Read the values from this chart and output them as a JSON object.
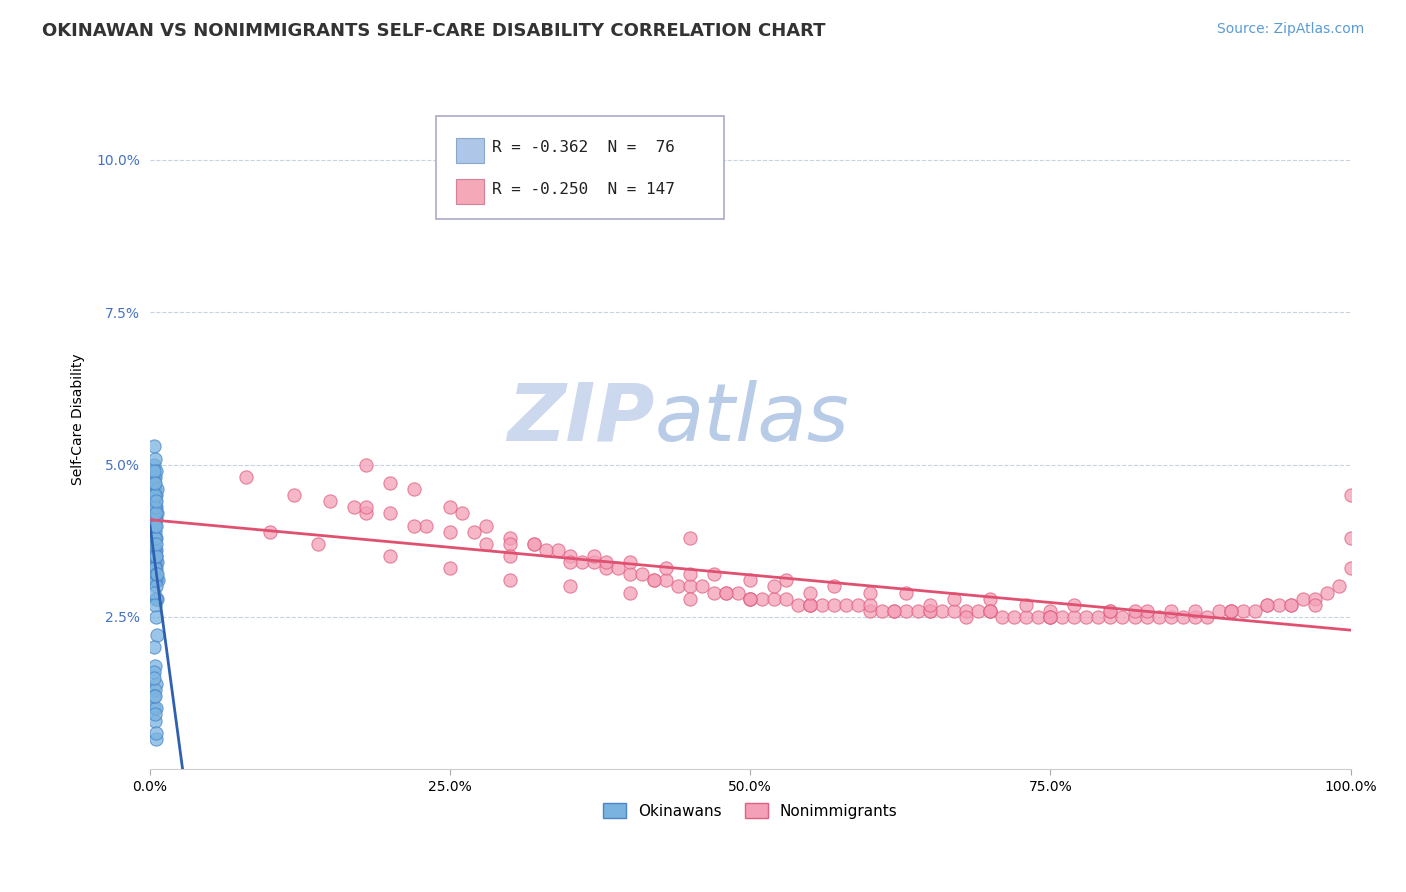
{
  "title": "OKINAWAN VS NONIMMIGRANTS SELF-CARE DISABILITY CORRELATION CHART",
  "source": "Source: ZipAtlas.com",
  "ylabel": "Self-Care Disability",
  "xlim": [
    0,
    1.0
  ],
  "ylim": [
    0,
    0.115
  ],
  "yticks": [
    0.025,
    0.05,
    0.075,
    0.1
  ],
  "ytick_labels": [
    "2.5%",
    "5.0%",
    "7.5%",
    "10.0%"
  ],
  "xticks": [
    0,
    0.25,
    0.5,
    0.75,
    1.0
  ],
  "xtick_labels": [
    "0.0%",
    "25.0%",
    "50.0%",
    "75.0%",
    "100.0%"
  ],
  "okinawan_color": "#7ab3e0",
  "okinawan_edge": "#4a86c8",
  "nonimmigrant_color": "#f4a0b8",
  "nonimmigrant_edge": "#e06080",
  "trendline_okinawan": "#3060b0",
  "trendline_nonimmigrant": "#e05070",
  "background_color": "#ffffff",
  "grid_color": "#c0cfe0",
  "watermark_zip": "ZIP",
  "watermark_atlas": "atlas",
  "watermark_color_zip": "#ccd8ee",
  "watermark_color_atlas": "#b8cce8",
  "title_fontsize": 13,
  "axis_label_fontsize": 10,
  "tick_fontsize": 10,
  "source_fontsize": 10,
  "R_okinawan": -0.362,
  "N_okinawan": 76,
  "R_nonimmigrant": -0.25,
  "N_nonimmigrant": 147,
  "ok_x": [
    0.002,
    0.003,
    0.004,
    0.005,
    0.006,
    0.007,
    0.003,
    0.004,
    0.005,
    0.003,
    0.004,
    0.005,
    0.003,
    0.004,
    0.005,
    0.006,
    0.003,
    0.004,
    0.005,
    0.006,
    0.003,
    0.004,
    0.005,
    0.006,
    0.003,
    0.004,
    0.005,
    0.003,
    0.004,
    0.005,
    0.003,
    0.004,
    0.005,
    0.003,
    0.004,
    0.005,
    0.003,
    0.004,
    0.005,
    0.003,
    0.004,
    0.005,
    0.003,
    0.004,
    0.005,
    0.006,
    0.003,
    0.004,
    0.005,
    0.006,
    0.003,
    0.004,
    0.005,
    0.003,
    0.004,
    0.005,
    0.003,
    0.004,
    0.005,
    0.003,
    0.004,
    0.005,
    0.003,
    0.004,
    0.005,
    0.003,
    0.004,
    0.005,
    0.003,
    0.004,
    0.005,
    0.003,
    0.004,
    0.005,
    0.003,
    0.004
  ],
  "ok_y": [
    0.043,
    0.041,
    0.039,
    0.036,
    0.034,
    0.031,
    0.046,
    0.044,
    0.041,
    0.048,
    0.046,
    0.043,
    0.05,
    0.048,
    0.045,
    0.042,
    0.053,
    0.051,
    0.049,
    0.046,
    0.036,
    0.034,
    0.031,
    0.028,
    0.038,
    0.036,
    0.033,
    0.04,
    0.038,
    0.035,
    0.033,
    0.031,
    0.028,
    0.043,
    0.041,
    0.038,
    0.035,
    0.033,
    0.03,
    0.037,
    0.035,
    0.032,
    0.029,
    0.027,
    0.025,
    0.022,
    0.04,
    0.038,
    0.035,
    0.032,
    0.042,
    0.04,
    0.037,
    0.045,
    0.043,
    0.04,
    0.047,
    0.045,
    0.042,
    0.049,
    0.047,
    0.044,
    0.02,
    0.017,
    0.014,
    0.01,
    0.008,
    0.005,
    0.016,
    0.013,
    0.01,
    0.012,
    0.009,
    0.006,
    0.015,
    0.012
  ],
  "ni_x": [
    0.18,
    0.2,
    0.22,
    0.25,
    0.26,
    0.28,
    0.3,
    0.32,
    0.34,
    0.35,
    0.36,
    0.37,
    0.38,
    0.39,
    0.4,
    0.41,
    0.42,
    0.43,
    0.44,
    0.45,
    0.46,
    0.47,
    0.48,
    0.49,
    0.5,
    0.51,
    0.52,
    0.53,
    0.54,
    0.55,
    0.56,
    0.57,
    0.58,
    0.59,
    0.6,
    0.61,
    0.62,
    0.63,
    0.64,
    0.65,
    0.66,
    0.67,
    0.68,
    0.69,
    0.7,
    0.71,
    0.72,
    0.73,
    0.74,
    0.75,
    0.76,
    0.77,
    0.78,
    0.79,
    0.8,
    0.81,
    0.82,
    0.83,
    0.84,
    0.85,
    0.86,
    0.87,
    0.88,
    0.89,
    0.9,
    0.91,
    0.92,
    0.93,
    0.94,
    0.95,
    0.96,
    0.97,
    0.98,
    0.99,
    1.0,
    0.15,
    0.17,
    0.2,
    0.23,
    0.27,
    0.3,
    0.33,
    0.37,
    0.4,
    0.43,
    0.47,
    0.5,
    0.53,
    0.57,
    0.6,
    0.63,
    0.67,
    0.7,
    0.73,
    0.77,
    0.8,
    0.83,
    0.87,
    0.9,
    0.93,
    0.97,
    1.0,
    0.1,
    0.14,
    0.2,
    0.25,
    0.3,
    0.35,
    0.4,
    0.45,
    0.5,
    0.55,
    0.6,
    0.65,
    0.7,
    0.75,
    0.8,
    0.85,
    0.9,
    0.95,
    1.0,
    0.08,
    0.12,
    0.18,
    0.25,
    0.32,
    0.38,
    0.45,
    0.52,
    0.18,
    0.22,
    0.28,
    0.35,
    0.42,
    0.48,
    0.55,
    0.62,
    0.68,
    0.75,
    0.82,
    0.3,
    0.5,
    0.7,
    0.45,
    0.55,
    0.65,
    0.75
  ],
  "ni_y": [
    0.05,
    0.047,
    0.046,
    0.043,
    0.042,
    0.04,
    0.038,
    0.037,
    0.036,
    0.035,
    0.034,
    0.034,
    0.033,
    0.033,
    0.032,
    0.032,
    0.031,
    0.031,
    0.03,
    0.03,
    0.03,
    0.029,
    0.029,
    0.029,
    0.028,
    0.028,
    0.028,
    0.028,
    0.027,
    0.027,
    0.027,
    0.027,
    0.027,
    0.027,
    0.026,
    0.026,
    0.026,
    0.026,
    0.026,
    0.026,
    0.026,
    0.026,
    0.026,
    0.026,
    0.026,
    0.025,
    0.025,
    0.025,
    0.025,
    0.025,
    0.025,
    0.025,
    0.025,
    0.025,
    0.025,
    0.025,
    0.025,
    0.025,
    0.025,
    0.025,
    0.025,
    0.025,
    0.025,
    0.026,
    0.026,
    0.026,
    0.026,
    0.027,
    0.027,
    0.027,
    0.028,
    0.028,
    0.029,
    0.03,
    0.045,
    0.044,
    0.043,
    0.042,
    0.04,
    0.039,
    0.037,
    0.036,
    0.035,
    0.034,
    0.033,
    0.032,
    0.031,
    0.031,
    0.03,
    0.029,
    0.029,
    0.028,
    0.028,
    0.027,
    0.027,
    0.026,
    0.026,
    0.026,
    0.026,
    0.027,
    0.027,
    0.033,
    0.039,
    0.037,
    0.035,
    0.033,
    0.031,
    0.03,
    0.029,
    0.028,
    0.028,
    0.027,
    0.027,
    0.026,
    0.026,
    0.026,
    0.026,
    0.026,
    0.026,
    0.027,
    0.038,
    0.048,
    0.045,
    0.042,
    0.039,
    0.037,
    0.034,
    0.032,
    0.03,
    0.043,
    0.04,
    0.037,
    0.034,
    0.031,
    0.029,
    0.027,
    0.026,
    0.025,
    0.025,
    0.026,
    0.035,
    0.028,
    0.026,
    0.038,
    0.029,
    0.027,
    0.025
  ]
}
